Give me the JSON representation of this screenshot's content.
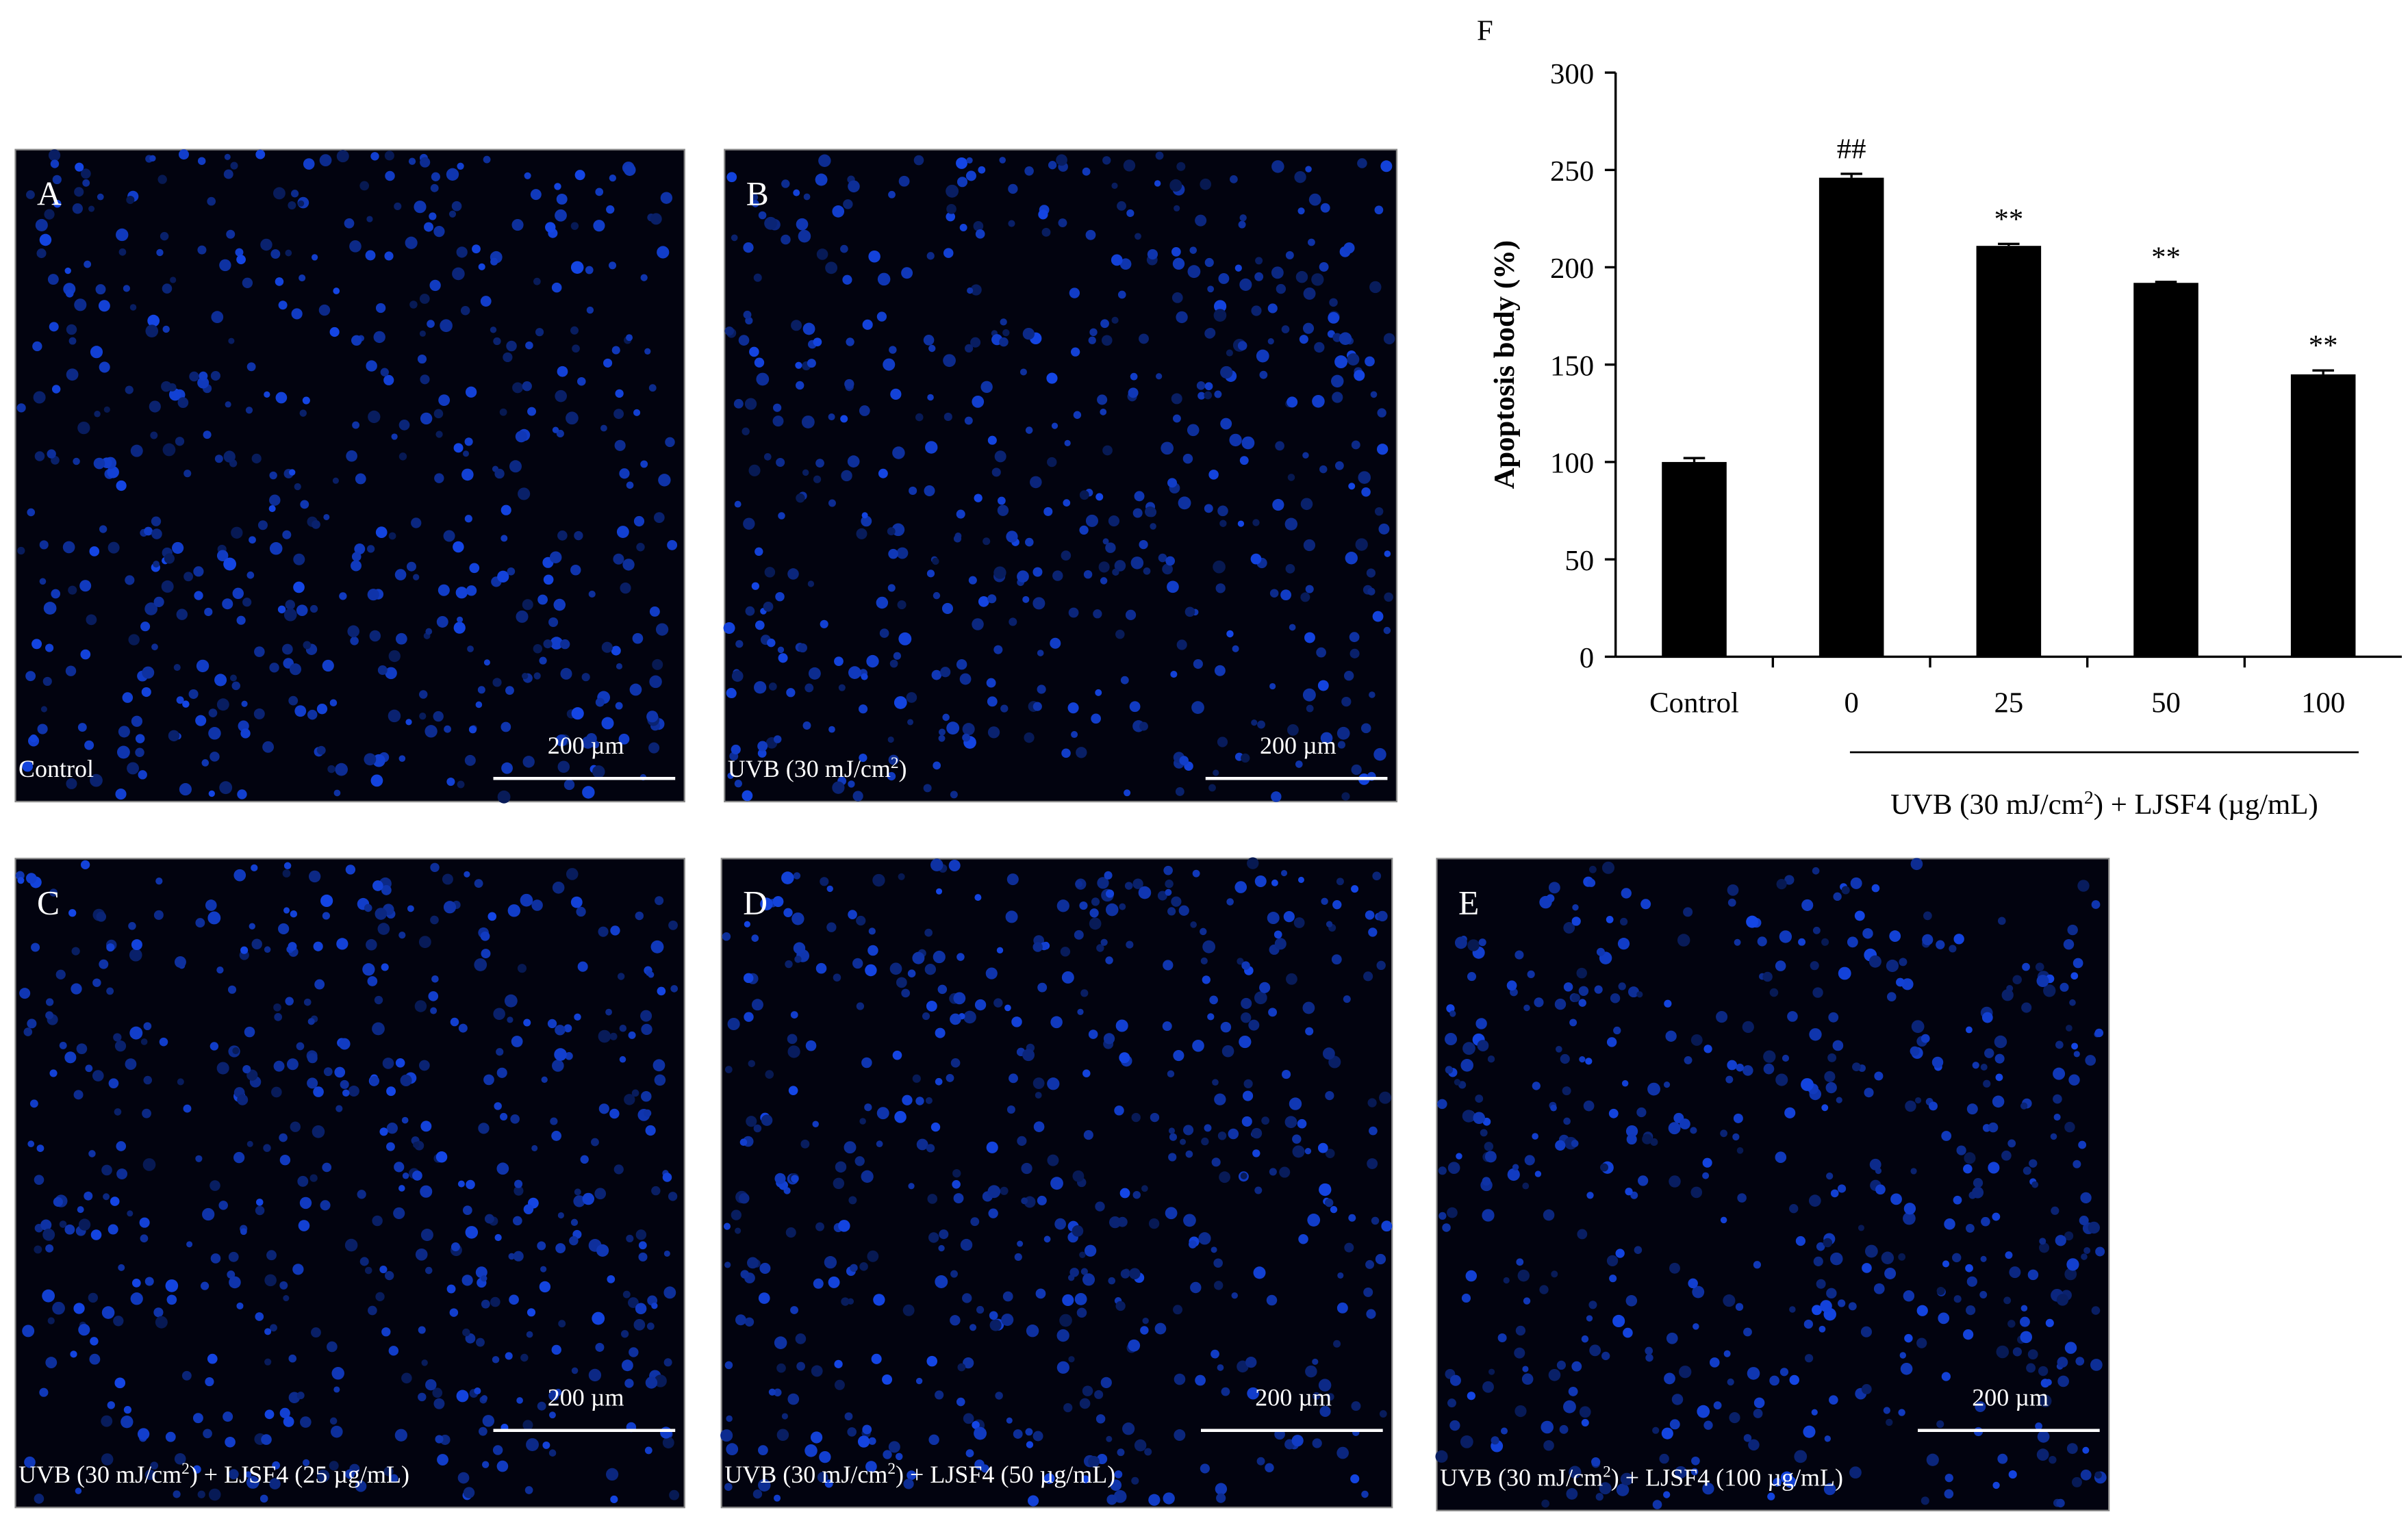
{
  "panels": [
    {
      "label": "A",
      "caption": {
        "main": "Control"
      },
      "scale": "200 µm"
    },
    {
      "label": "B",
      "caption": {
        "main": "UVB (30 mJ/cm",
        "sup": "2",
        "rest": ")"
      },
      "scale": "200 µm"
    },
    {
      "label": "C",
      "caption": {
        "main": "UVB (30 mJ/cm",
        "sup": "2",
        "rest": ") + LJSF4 (25 µg/mL)"
      },
      "scale": "200 µm"
    },
    {
      "label": "D",
      "caption": {
        "main": "UVB (30 mJ/cm",
        "sup": "2",
        "rest": ") + LJSF4 (50 µg/mL)"
      },
      "scale": "200 µm"
    },
    {
      "label": "E",
      "caption": {
        "main": "UVB (30 mJ/cm",
        "sup": "2",
        "rest": ") + LJSF4 (100 µg/mL)"
      },
      "scale": "200 µm"
    }
  ],
  "chart_data": {
    "type": "bar",
    "panel_label": "F",
    "y_label": "Apoptosis body (%)",
    "categories": [
      "Control",
      "0",
      "25",
      "50",
      "100"
    ],
    "values": [
      100,
      246,
      211,
      192,
      145
    ],
    "errors": [
      2,
      2,
      1,
      0.5,
      2
    ],
    "significance": [
      null,
      "##",
      "**",
      "**",
      "**"
    ],
    "group_label": {
      "main": "UVB (30 mJ/cm",
      "sup": "2",
      "rest": ") + LJSF4 (µg/mL)"
    },
    "color": "#000000",
    "ylim": [
      0,
      300
    ],
    "yticks": [
      0,
      50,
      100,
      150,
      200,
      250,
      300
    ],
    "grid": false
  }
}
